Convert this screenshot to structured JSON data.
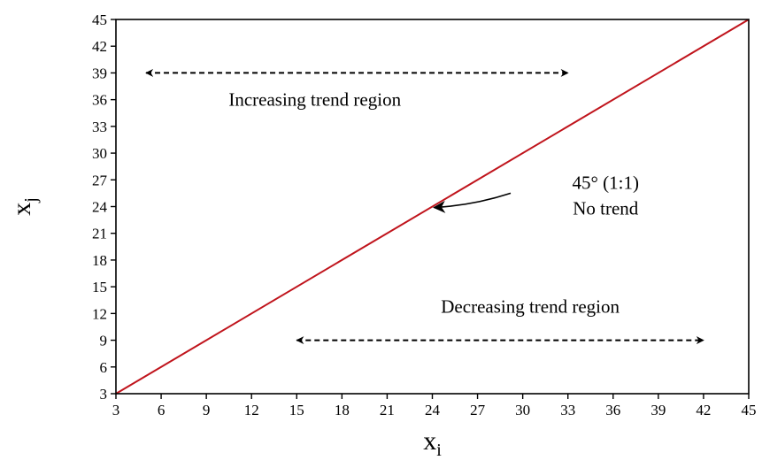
{
  "chart_data": {
    "type": "line",
    "title": "",
    "xlabel": "x",
    "xlabel_subscript": "i",
    "ylabel": "x",
    "ylabel_subscript": "j",
    "xlim": [
      3,
      45
    ],
    "ylim": [
      3,
      45
    ],
    "x_ticks": [
      3,
      6,
      9,
      12,
      15,
      18,
      21,
      24,
      27,
      30,
      33,
      36,
      39,
      42,
      45
    ],
    "y_ticks": [
      3,
      6,
      9,
      12,
      15,
      18,
      21,
      24,
      27,
      30,
      33,
      36,
      39,
      42,
      45
    ],
    "grid": false,
    "series": [
      {
        "color": "#c0141c",
        "x": [
          3,
          45
        ],
        "y": [
          3,
          45
        ]
      }
    ],
    "annotations": {
      "increasing": {
        "text": "Increasing trend region",
        "text_anchor": [
          16.2,
          36
        ],
        "arrow": {
          "x": [
            5,
            33
          ],
          "y": [
            39,
            39
          ],
          "style": "dashed-double"
        }
      },
      "decreasing": {
        "text": "Decreasing trend region",
        "text_anchor": [
          30.5,
          12.8
        ],
        "arrow": {
          "x": [
            15,
            42
          ],
          "y": [
            9,
            9
          ],
          "style": "dashed-double"
        }
      },
      "diagonal": {
        "lines": [
          "45° (1:1)",
          "No trend"
        ],
        "text_anchor": [
          35.5,
          25.3
        ],
        "arrow": {
          "from": [
            29.2,
            25.5
          ],
          "to": [
            24,
            24
          ]
        }
      }
    }
  }
}
